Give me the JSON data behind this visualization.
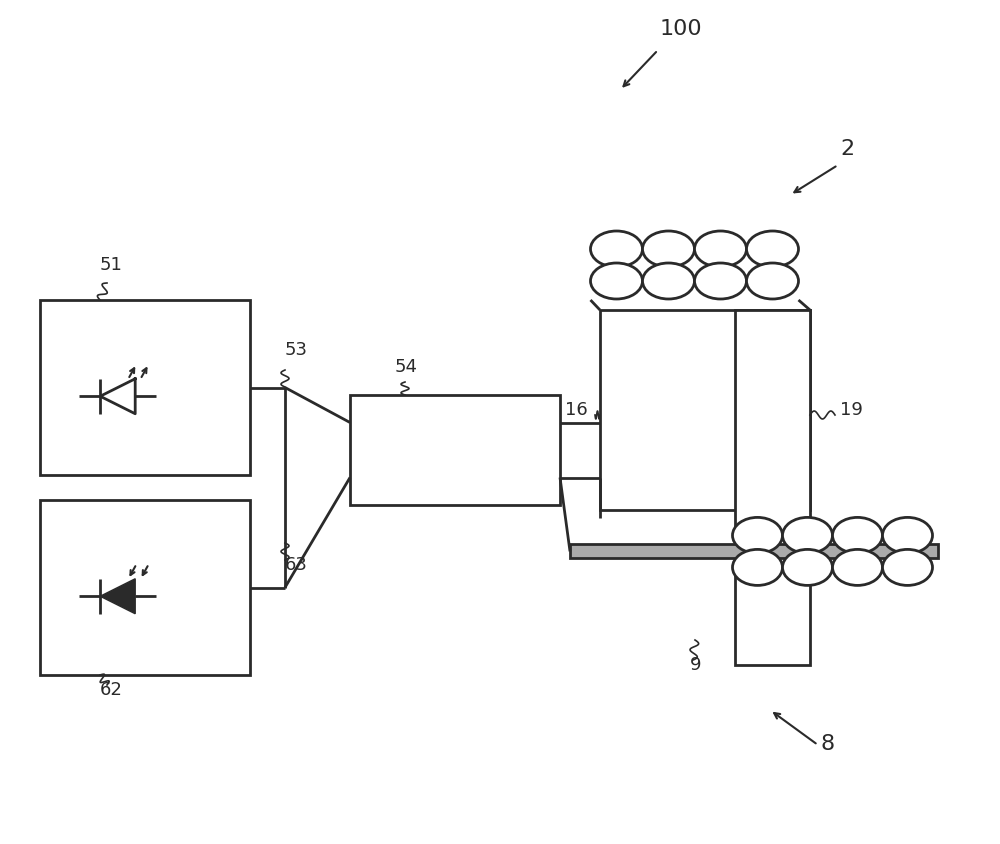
{
  "bg_color": "#ffffff",
  "line_color": "#2a2a2a",
  "line_width": 2.0,
  "fig_width": 10.0,
  "fig_height": 8.44,
  "dpi": 100
}
